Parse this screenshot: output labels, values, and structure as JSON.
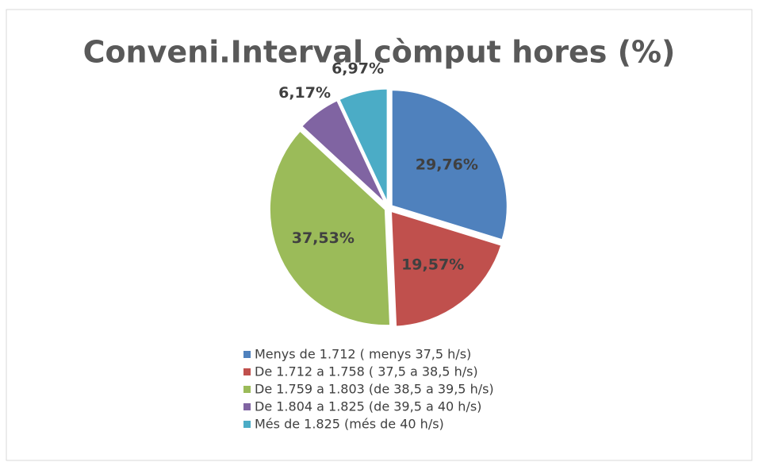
{
  "chart_data": {
    "type": "pie",
    "title": "Conveni.Interval còmput hores (%)",
    "categories": [
      "Menys de 1.712 ( menys 37,5 h/s)",
      "De 1.712 a 1.758 ( 37,5 a 38,5 h/s)",
      "De 1.759 a 1.803 (de 38,5 a 39,5 h/s)",
      "De 1.804 a 1.825 (de 39,5 a 40 h/s)",
      "Més de 1.825 (més de 40 h/s)"
    ],
    "values": [
      29.76,
      19.57,
      37.53,
      6.17,
      6.97
    ],
    "value_labels": [
      "29,76%",
      "19,57%",
      "37,53%",
      "6,17%",
      "6,97%"
    ],
    "colors": [
      "#4f81bd",
      "#c0504d",
      "#9bbb59",
      "#8064a2",
      "#4bacc6"
    ],
    "legend": "bottom"
  }
}
